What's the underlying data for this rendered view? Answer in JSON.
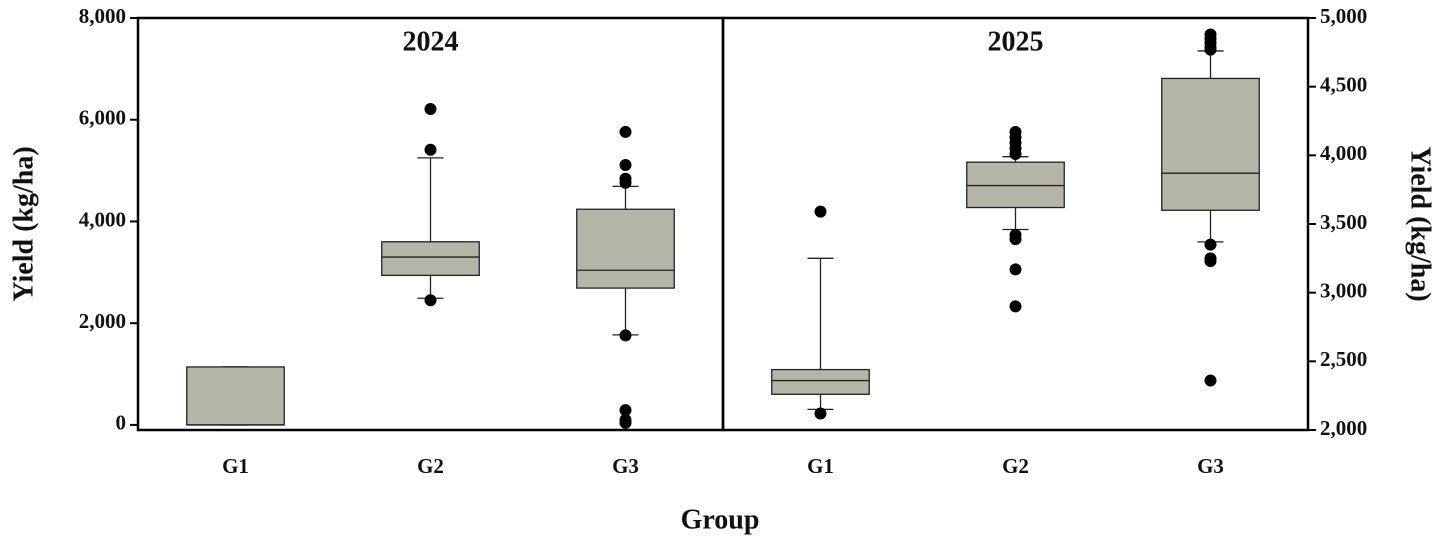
{
  "xlabel": "Group",
  "chart_data": [
    {
      "type": "box",
      "title": "2024",
      "ylabel": "Yield (kg/ha)",
      "axis_side": "left",
      "color": "#b6b6a8",
      "categories": [
        "G1",
        "G2",
        "G3"
      ],
      "ylim": [
        -100,
        8000
      ],
      "yticks": [
        0,
        {
          "value": 2000,
          "label": "2,000"
        },
        {
          "value": 4000,
          "label": "4,000"
        },
        {
          "value": 6000,
          "label": "6,000"
        },
        {
          "value": 8000,
          "label": "8,000"
        }
      ],
      "boxes": [
        {
          "min": 0,
          "q1": 0,
          "median": 0,
          "q3": 1140,
          "max": 1140,
          "outliers": []
        },
        {
          "min": 2490,
          "q1": 2940,
          "median": 3300,
          "q3": 3600,
          "max": 5250,
          "outliers": [
            6210,
            5410,
            2450
          ]
        },
        {
          "min": 1770,
          "q1": 2690,
          "median": 3040,
          "q3": 4240,
          "max": 4690,
          "outliers": [
            5760,
            5110,
            4840,
            4760,
            1760,
            290,
            100,
            40
          ]
        }
      ]
    },
    {
      "type": "box",
      "title": "2025",
      "ylabel": "Yield (kg/ha)",
      "axis_side": "right",
      "color": "#b6b6a8",
      "categories": [
        "G1",
        "G2",
        "G3"
      ],
      "ylim": [
        2000,
        5000
      ],
      "yticks": [
        {
          "value": 2000,
          "label": "2,000"
        },
        {
          "value": 2500,
          "label": "2,500"
        },
        {
          "value": 3000,
          "label": "3,000"
        },
        {
          "value": 3500,
          "label": "3,500"
        },
        {
          "value": 4000,
          "label": "4,000"
        },
        {
          "value": 4500,
          "label": "4,500"
        },
        {
          "value": 5000,
          "label": "5,000"
        }
      ],
      "boxes": [
        {
          "min": 2150,
          "q1": 2260,
          "median": 2360,
          "q3": 2440,
          "max": 3250,
          "outliers": [
            3590,
            2120
          ]
        },
        {
          "min": 3460,
          "q1": 3620,
          "median": 3780,
          "q3": 3950,
          "max": 3990,
          "outliers": [
            4170,
            4130,
            4090,
            4050,
            4010,
            3420,
            3390,
            3170,
            2900
          ]
        },
        {
          "min": 3370,
          "q1": 3600,
          "median": 3870,
          "q3": 4560,
          "max": 4760,
          "outliers": [
            4880,
            4850,
            4820,
            4790,
            4770,
            3350,
            3250,
            3230,
            2360
          ]
        }
      ]
    }
  ]
}
